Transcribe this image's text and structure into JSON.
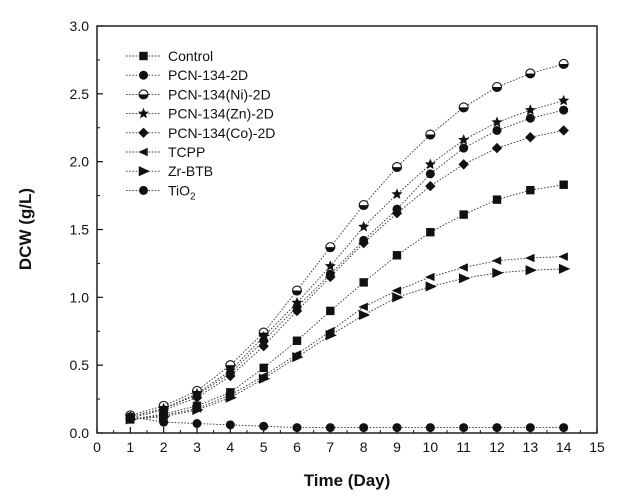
{
  "chart_data": {
    "type": "line",
    "xlabel": "Time (Day)",
    "ylabel": "DCW (g/L)",
    "xlim": [
      0,
      15
    ],
    "ylim": [
      0.0,
      3.0
    ],
    "xticks": [
      0,
      1,
      2,
      3,
      4,
      5,
      6,
      7,
      8,
      9,
      10,
      11,
      12,
      13,
      14,
      15
    ],
    "yticks": [
      0.0,
      0.5,
      1.0,
      1.5,
      2.0,
      2.5,
      3.0
    ],
    "yticks_labels": [
      "0.0",
      "0.5",
      "1.0",
      "1.5",
      "2.0",
      "2.5",
      "3.0"
    ],
    "grid": false,
    "legend_position": "top-left",
    "x": [
      1,
      2,
      3,
      4,
      5,
      6,
      7,
      8,
      9,
      10,
      11,
      12,
      13,
      14
    ],
    "series": [
      {
        "name": "Control",
        "marker": "square",
        "values": [
          0.1,
          0.14,
          0.2,
          0.3,
          0.48,
          0.68,
          0.9,
          1.11,
          1.31,
          1.48,
          1.61,
          1.72,
          1.79,
          1.83
        ]
      },
      {
        "name": "PCN-134-2D",
        "marker": "circle",
        "values": [
          0.12,
          0.18,
          0.28,
          0.44,
          0.68,
          0.93,
          1.17,
          1.42,
          1.65,
          1.91,
          2.1,
          2.23,
          2.32,
          2.38
        ]
      },
      {
        "name": "PCN-134(Ni)-2D",
        "marker": "half-circle",
        "values": [
          0.13,
          0.2,
          0.31,
          0.5,
          0.74,
          1.05,
          1.37,
          1.68,
          1.96,
          2.2,
          2.4,
          2.55,
          2.65,
          2.72
        ]
      },
      {
        "name": "PCN-134(Zn)-2D",
        "marker": "star",
        "values": [
          0.12,
          0.18,
          0.29,
          0.46,
          0.71,
          0.96,
          1.23,
          1.52,
          1.76,
          1.98,
          2.16,
          2.29,
          2.38,
          2.45
        ]
      },
      {
        "name": "PCN-134(Co)-2D",
        "marker": "diamond",
        "values": [
          0.11,
          0.17,
          0.26,
          0.42,
          0.64,
          0.9,
          1.15,
          1.4,
          1.62,
          1.82,
          1.98,
          2.1,
          2.18,
          2.23
        ]
      },
      {
        "name": "TCPP",
        "marker": "left-triangle",
        "values": [
          0.1,
          0.13,
          0.18,
          0.28,
          0.42,
          0.58,
          0.75,
          0.93,
          1.05,
          1.15,
          1.22,
          1.27,
          1.29,
          1.3
        ]
      },
      {
        "name": "Zr-BTB",
        "marker": "half-right-triangle",
        "values": [
          0.1,
          0.12,
          0.17,
          0.26,
          0.4,
          0.56,
          0.72,
          0.87,
          1.0,
          1.08,
          1.14,
          1.18,
          1.2,
          1.21
        ]
      },
      {
        "name": "TiO2",
        "display_name": "TiO",
        "subscript": "2",
        "marker": "circle",
        "values": [
          0.12,
          0.08,
          0.07,
          0.06,
          0.05,
          0.04,
          0.04,
          0.04,
          0.04,
          0.04,
          0.04,
          0.04,
          0.04,
          0.04
        ]
      }
    ]
  }
}
